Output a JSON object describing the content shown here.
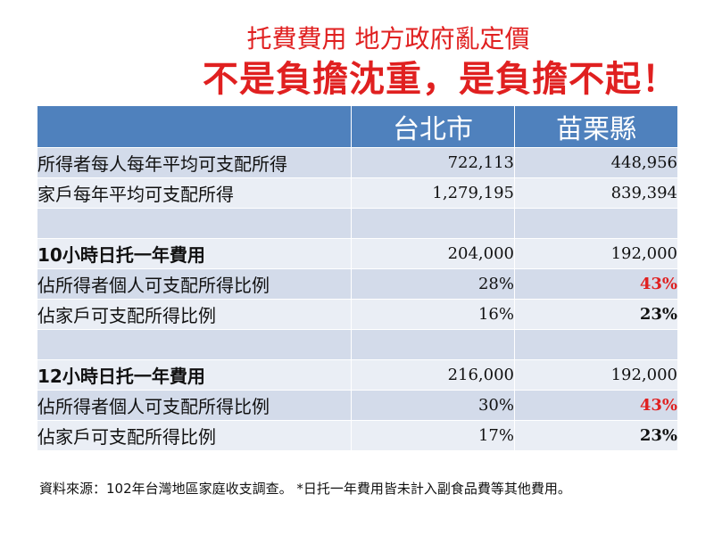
{
  "title": {
    "line1": "托費費用  地方政府亂定價",
    "line2": "不是負擔沈重，是負擔不起！"
  },
  "table": {
    "headers": [
      "",
      "台北市",
      "苗栗縣"
    ],
    "rows": [
      {
        "label": "所得者每人每年平均可支配所得",
        "taipei": "722,113",
        "miaoli": "448,956"
      },
      {
        "label": "家戶每年平均可支配所得",
        "taipei": "1,279,195",
        "miaoli": "839,394"
      },
      {
        "label": "",
        "taipei": "",
        "miaoli": ""
      },
      {
        "label": "10小時日托一年費用",
        "taipei": "204,000",
        "miaoli": "192,000"
      },
      {
        "label": "佔所得者個人可支配所得比例",
        "taipei": "28%",
        "miaoli": "43%"
      },
      {
        "label": "佔家戶可支配所得比例",
        "taipei": "16%",
        "miaoli": "23%"
      },
      {
        "label": "",
        "taipei": "",
        "miaoli": ""
      },
      {
        "label": "12小時日托一年費用",
        "taipei": "216,000",
        "miaoli": "192,000"
      },
      {
        "label": "佔所得者個人可支配所得比例",
        "taipei": "30%",
        "miaoli": "43%"
      },
      {
        "label": "佔家戶可支配所得比例",
        "taipei": "17%",
        "miaoli": "23%"
      }
    ]
  },
  "footnote": "資料來源：102年台灣地區家庭收支調查。 *日托一年費用皆未計入副食品費等其他費用。",
  "colors": {
    "title_red": "#e02020",
    "header_blue": "#4f81bd",
    "row_dark": "#d3dbea",
    "row_light": "#eaeef5",
    "highlight_red": "#e02020"
  }
}
